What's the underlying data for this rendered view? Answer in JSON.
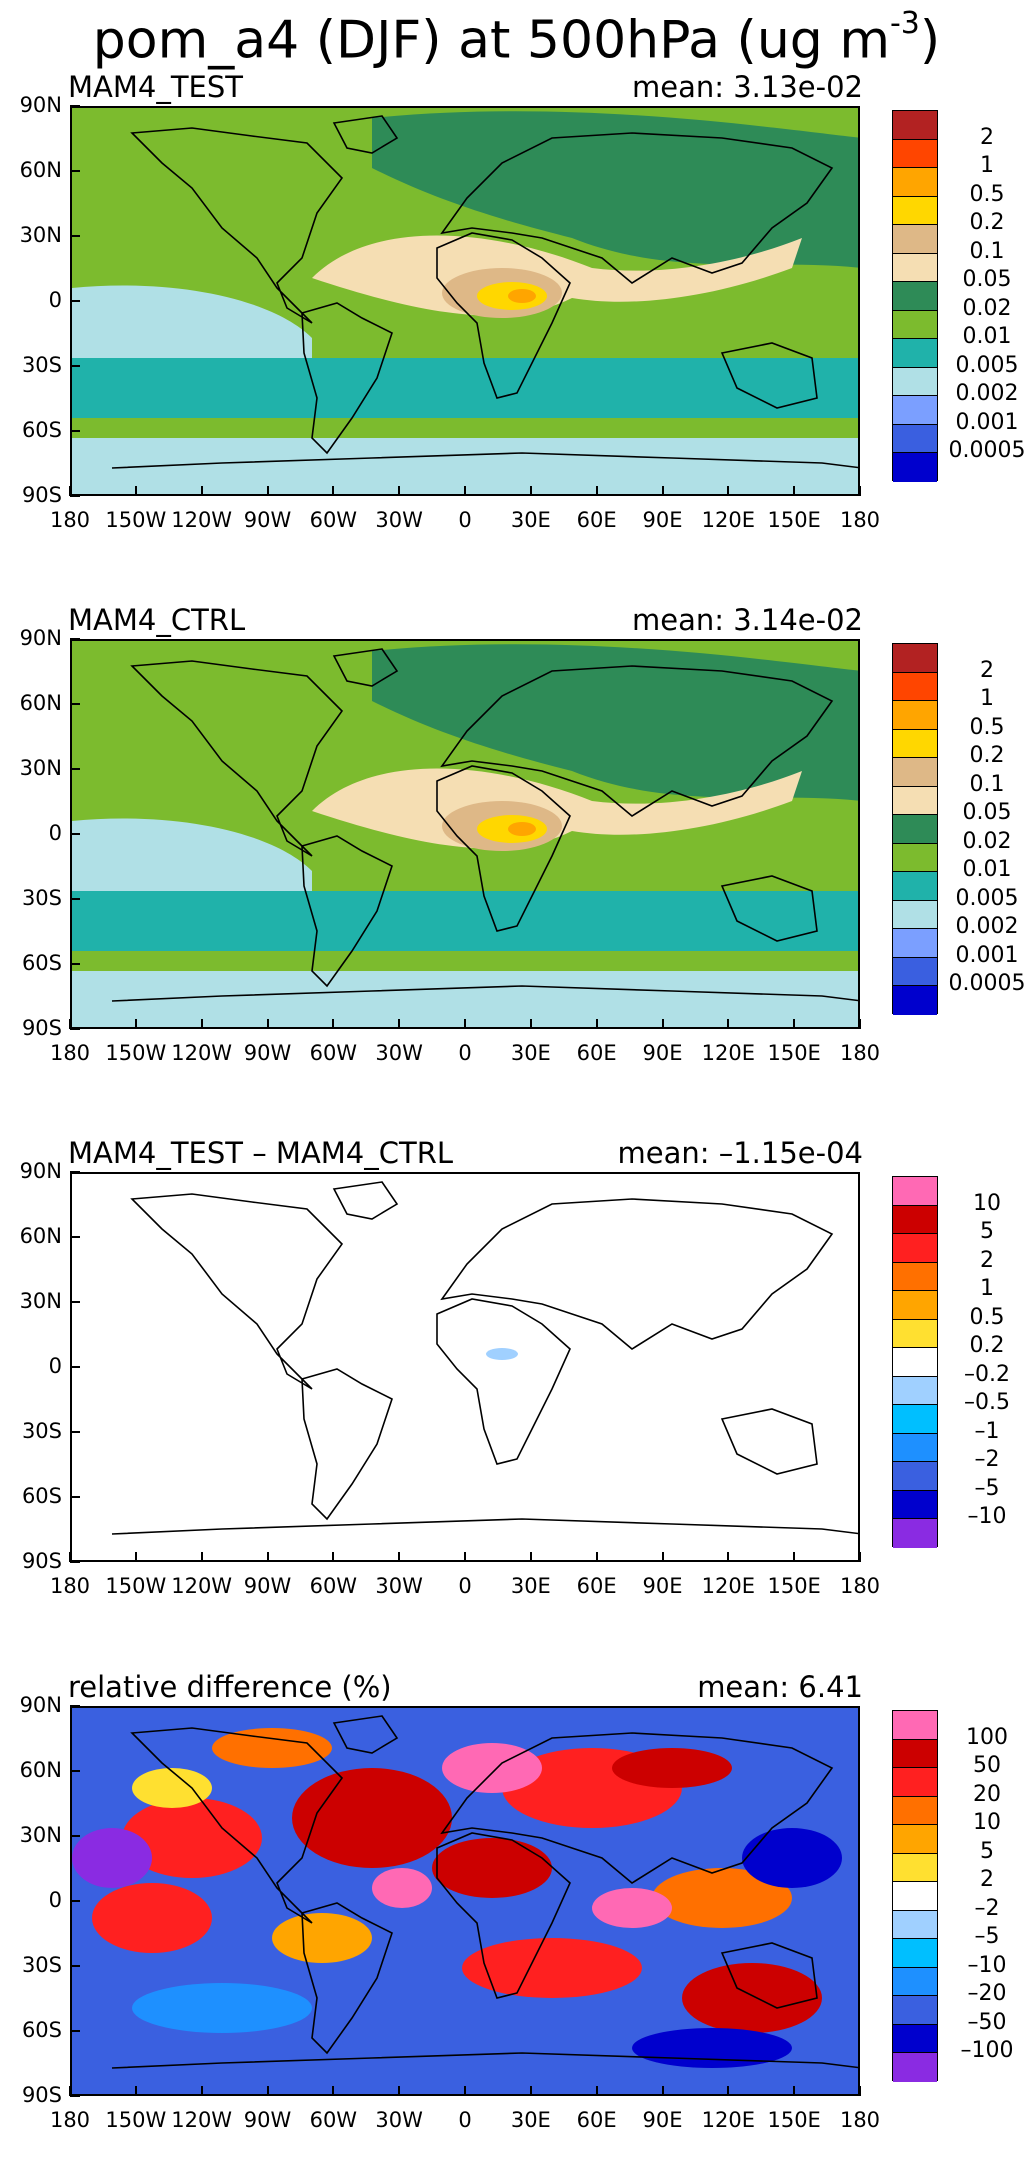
{
  "figure": {
    "title_prefix": "pom_a4 (DJF) at 500hPa (ug m",
    "title_exponent": "-3",
    "title_suffix": ")"
  },
  "axes": {
    "lat_labels": [
      "90N",
      "60N",
      "30N",
      "0",
      "30S",
      "60S",
      "90S"
    ],
    "lon_labels": [
      "180",
      "150W",
      "120W",
      "90W",
      "60W",
      "30W",
      "0",
      "30E",
      "60E",
      "90E",
      "120E",
      "150E",
      "180"
    ]
  },
  "panels": [
    {
      "title": "MAM4_TEST",
      "mean": "mean: 3.13e-02",
      "levels": [
        "2",
        "1",
        "0.5",
        "0.2",
        "0.1",
        "0.05",
        "0.02",
        "0.01",
        "0.005",
        "0.002",
        "0.001",
        "0.0005"
      ],
      "colors": [
        "#b22222",
        "#ff4500",
        "#ffa500",
        "#ffd700",
        "#deb887",
        "#f5deb3",
        "#2e8b57",
        "#7cbb2e",
        "#20b2aa",
        "#b0e0e6",
        "#7b9fff",
        "#3a5fe0",
        "#0000cd"
      ]
    },
    {
      "title": "MAM4_CTRL",
      "mean": "mean: 3.14e-02",
      "levels": [
        "2",
        "1",
        "0.5",
        "0.2",
        "0.1",
        "0.05",
        "0.02",
        "0.01",
        "0.005",
        "0.002",
        "0.001",
        "0.0005"
      ],
      "colors": [
        "#b22222",
        "#ff4500",
        "#ffa500",
        "#ffd700",
        "#deb887",
        "#f5deb3",
        "#2e8b57",
        "#7cbb2e",
        "#20b2aa",
        "#b0e0e6",
        "#7b9fff",
        "#3a5fe0",
        "#0000cd"
      ]
    },
    {
      "title": "MAM4_TEST – MAM4_CTRL",
      "mean": "mean: –1.15e-04",
      "levels": [
        "10",
        "5",
        "2",
        "1",
        "0.5",
        "0.2",
        "–0.2",
        "–0.5",
        "–1",
        "–2",
        "–5",
        "–10"
      ],
      "colors": [
        "#ff69b4",
        "#cc0000",
        "#ff2020",
        "#ff7000",
        "#ffa500",
        "#ffe030",
        "#ffffff",
        "#a0d0ff",
        "#00bfff",
        "#1e90ff",
        "#3a60e0",
        "#0000cd",
        "#8a2be2"
      ]
    },
    {
      "title": "relative difference (%)",
      "mean": "mean:   6.41",
      "levels": [
        "100",
        "50",
        "20",
        "10",
        "5",
        "2",
        "–2",
        "–5",
        "–10",
        "–20",
        "–50",
        "–100"
      ],
      "colors": [
        "#ff69b4",
        "#cc0000",
        "#ff2020",
        "#ff7000",
        "#ffa500",
        "#ffe030",
        "#ffffff",
        "#a0d0ff",
        "#00bfff",
        "#1e90ff",
        "#3a60e0",
        "#0000cd",
        "#8a2be2"
      ]
    }
  ]
}
